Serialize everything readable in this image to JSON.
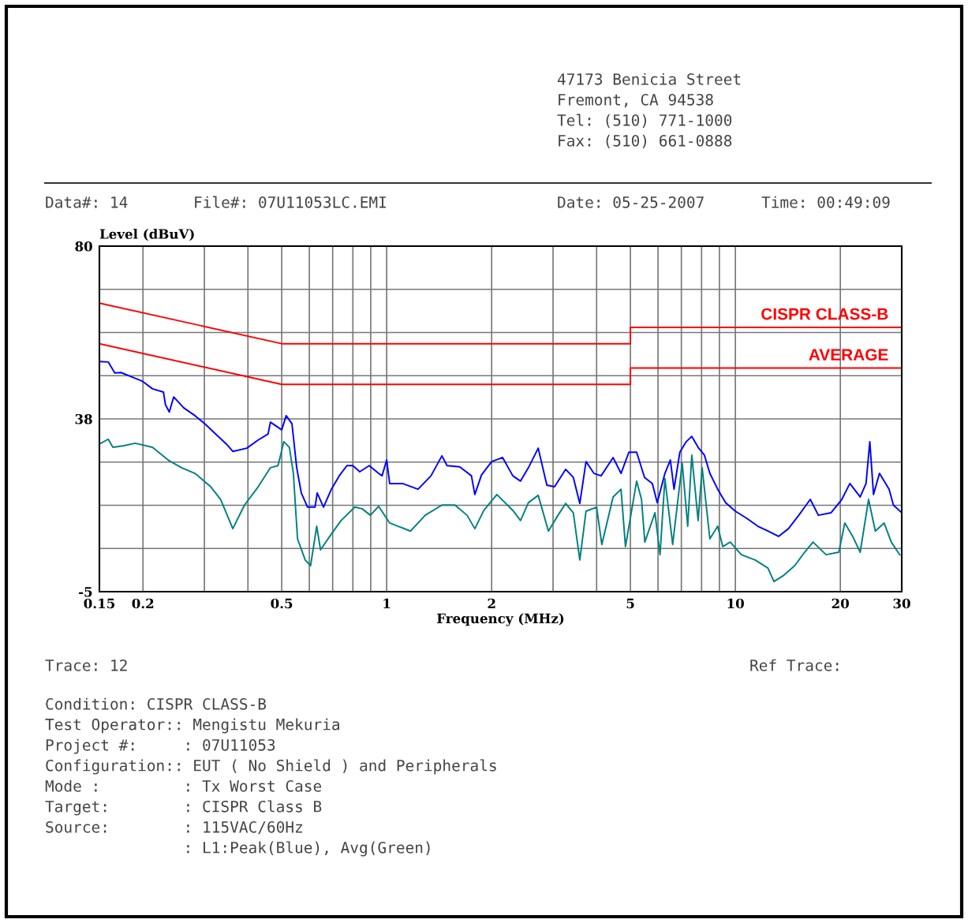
{
  "chart_data": {
    "type": "line",
    "xlabel": "Frequency (MHz)",
    "ylabel": "Level (dBuV)",
    "log": "x",
    "grid": true,
    "legend": false,
    "marker": "none",
    "line_style": "solid",
    "xlim": [
      0.15,
      30
    ],
    "xticks": [
      0.15,
      0.2,
      {
        "value": 0.3,
        "label": null
      },
      {
        "value": 0.4,
        "label": null
      },
      0.5,
      {
        "value": 0.6,
        "label": null
      },
      {
        "value": 0.7,
        "label": null
      },
      {
        "value": 0.8,
        "label": null
      },
      {
        "value": 0.9,
        "label": null
      },
      1,
      2,
      {
        "value": 3,
        "label": null
      },
      {
        "value": 4,
        "label": null
      },
      5,
      {
        "value": 6,
        "label": null
      },
      {
        "value": 7,
        "label": null
      },
      {
        "value": 8,
        "label": null
      },
      {
        "value": 9,
        "label": null
      },
      10,
      20,
      30
    ],
    "ylim": [
      -5,
      80
    ],
    "yticks": [
      -5,
      {
        "value": 5.625,
        "label": null
      },
      {
        "value": 16.25,
        "label": null
      },
      {
        "value": 26.875,
        "label": null
      },
      {
        "value": 37.5,
        "label": "38"
      },
      {
        "value": 48.125,
        "label": null
      },
      {
        "value": 58.75,
        "label": null
      },
      {
        "value": 69.375,
        "label": null
      },
      80
    ],
    "series": [
      {
        "name": "CISPR CLASS-B",
        "color": "#ff0000",
        "x": [
          0.15,
          0.5,
          5,
          5,
          30
        ],
        "values": [
          66,
          56,
          56,
          60,
          60
        ]
      },
      {
        "name": "AVERAGE",
        "color": "#ff0000",
        "x": [
          0.15,
          0.5,
          5,
          5,
          30
        ],
        "values": [
          56,
          46,
          46,
          50,
          50
        ]
      },
      {
        "color": "#0000ff",
        "x": [
          0.15,
          0.159,
          0.166,
          0.173,
          0.186,
          0.199,
          0.213,
          0.229,
          0.232,
          0.238,
          0.245,
          0.262,
          0.282,
          0.301,
          0.323,
          0.347,
          0.362,
          0.397,
          0.428,
          0.457,
          0.464,
          0.5,
          0.515,
          0.535,
          0.552,
          0.569,
          0.593,
          0.623,
          0.632,
          0.659,
          0.694,
          0.731,
          0.769,
          0.8,
          0.837,
          0.891,
          0.948,
          0.97,
          1.0,
          1.02,
          1.11,
          1.23,
          1.34,
          1.44,
          1.49,
          1.62,
          1.75,
          1.79,
          1.87,
          2.0,
          2.15,
          2.3,
          2.42,
          2.55,
          2.72,
          2.88,
          3.03,
          3.26,
          3.43,
          3.58,
          3.73,
          3.93,
          4.12,
          4.46,
          4.7,
          4.95,
          5.21,
          5.49,
          5.78,
          5.97,
          6.28,
          6.51,
          6.67,
          6.93,
          7.23,
          7.5,
          7.82,
          8.15,
          8.45,
          8.9,
          9.38,
          10.0,
          10.8,
          11.6,
          12.4,
          13.3,
          14.2,
          15.2,
          16.4,
          17.3,
          18.8,
          20.2,
          21.3,
          22.8,
          23.7,
          24.3,
          24.9,
          25.9,
          27.6,
          28.4,
          30
        ],
        "values": [
          51.6,
          51.5,
          48.8,
          48.9,
          47.8,
          46.8,
          44.9,
          44.1,
          41,
          39.2,
          42.9,
          40.2,
          38.3,
          36.3,
          33.8,
          31.3,
          29.5,
          30.3,
          32.3,
          33.8,
          36.7,
          34.8,
          38.3,
          36.3,
          25.5,
          19.3,
          15.8,
          15.8,
          19.3,
          15.8,
          20.2,
          23.5,
          26,
          26,
          24.5,
          26,
          24.1,
          23.5,
          27.4,
          21.6,
          21.6,
          20.2,
          23.5,
          28.4,
          26,
          25.7,
          23.5,
          18.9,
          23.7,
          27,
          28,
          23.5,
          22.2,
          25.5,
          30.3,
          21.2,
          20.8,
          25.1,
          23.1,
          16.7,
          27,
          24.1,
          23.5,
          28,
          24.1,
          29.3,
          29.3,
          23.1,
          21.6,
          16.9,
          24.1,
          27.4,
          20.2,
          29.3,
          31.9,
          33.2,
          30.5,
          28.6,
          24.1,
          20.2,
          16.9,
          14.8,
          13,
          11.1,
          9.9,
          8.6,
          10.5,
          13.8,
          17.7,
          13.8,
          14.4,
          17.7,
          21.6,
          18.3,
          21.6,
          31.9,
          18.9,
          24.1,
          20.2,
          16.3,
          14.4
        ]
      },
      {
        "color": "#008080",
        "x": [
          0.15,
          0.159,
          0.164,
          0.176,
          0.19,
          0.213,
          0.236,
          0.258,
          0.282,
          0.313,
          0.334,
          0.362,
          0.391,
          0.428,
          0.464,
          0.488,
          0.507,
          0.526,
          0.54,
          0.555,
          0.584,
          0.605,
          0.63,
          0.646,
          0.694,
          0.74,
          0.81,
          0.85,
          0.898,
          0.948,
          1.02,
          1.17,
          1.29,
          1.44,
          1.57,
          1.7,
          1.79,
          1.9,
          2.07,
          2.3,
          2.42,
          2.55,
          2.72,
          2.91,
          3.1,
          3.26,
          3.43,
          3.58,
          3.73,
          4.0,
          4.14,
          4.46,
          4.7,
          4.84,
          5.21,
          5.38,
          5.5,
          5.88,
          6.08,
          6.28,
          6.61,
          7.04,
          7.3,
          7.5,
          7.82,
          8.03,
          8.45,
          8.9,
          9.2,
          9.67,
          10.4,
          11.4,
          12.4,
          12.9,
          13.7,
          14.8,
          15.8,
          16.7,
          18.2,
          19.8,
          20.6,
          21.7,
          22.8,
          24.1,
          25.2,
          26.7,
          28.0,
          29.6
        ],
        "values": [
          31.3,
          32.5,
          30.5,
          30.9,
          31.5,
          30.5,
          27.4,
          25.5,
          24.1,
          20.8,
          17.7,
          10.5,
          16.3,
          20.8,
          25.5,
          26,
          31.9,
          30.5,
          24.1,
          8,
          2.8,
          1.4,
          11.1,
          5.3,
          9.2,
          12.5,
          15.8,
          15.4,
          13.8,
          16,
          11.9,
          9.9,
          13.8,
          16.3,
          16.3,
          13.8,
          10.5,
          15,
          18.9,
          15,
          12.5,
          16.9,
          18.7,
          9.9,
          13.8,
          16.7,
          14.4,
          2.8,
          14.8,
          15.8,
          6.6,
          18.3,
          20.2,
          6.1,
          22.2,
          17.7,
          7.2,
          14.4,
          4.1,
          22.8,
          6.6,
          26.6,
          11.1,
          28.6,
          12.5,
          25.5,
          8,
          11.1,
          6.1,
          7.2,
          4.1,
          2.8,
          0.8,
          -2.5,
          -1.1,
          1.4,
          4.7,
          7.2,
          4.1,
          4.7,
          11.9,
          8.6,
          4.7,
          17.7,
          9.9,
          11.9,
          7.2,
          4.1
        ]
      }
    ],
    "annotations": [
      "47173 Benicia Street",
      "Fremont, CA 94538",
      "Tel: (510) 771-1000",
      "Fax: (510) 661-0888",
      "Data#: 14",
      "File#: 07U11053LC.EMI",
      "Date: 05-25-2007",
      "Time: 00:49:09",
      "Trace: 12",
      "Ref Trace:",
      "Condition: CISPR CLASS-B",
      "Test Operator:: Mengistu Mekuria",
      "Project #:     : 07U11053",
      "Configuration:: EUT ( No Shield ) and Peripherals",
      "Mode :         : Tx Worst Case",
      "Target:        : CISPR Class B",
      "Source:        : 115VAC/60Hz",
      "               : L1:Peak(Blue), Avg(Green)"
    ]
  }
}
